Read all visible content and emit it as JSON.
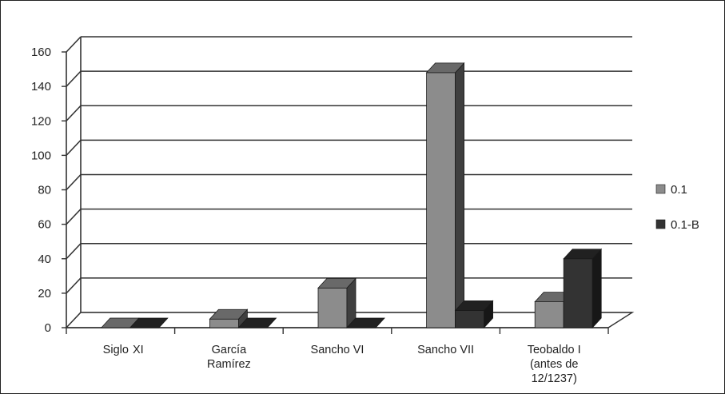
{
  "chart_data": {
    "type": "bar",
    "title": "",
    "xlabel": "",
    "ylabel": "",
    "ylim": [
      0,
      160
    ],
    "yticks": [
      "0",
      "20",
      "40",
      "60",
      "80",
      "100",
      "120",
      "140",
      "160"
    ],
    "categories": [
      [
        "Siglo",
        "XI"
      ],
      [
        "García",
        "Ramírez"
      ],
      [
        "Sancho VI"
      ],
      [
        "Sancho VII"
      ],
      [
        "Teobaldo I",
        "(antes de",
        "12/1237)"
      ]
    ],
    "series": [
      {
        "name": "0.1",
        "values": [
          0,
          5,
          23,
          148,
          15
        ],
        "color": "#8c8c8c"
      },
      {
        "name": "0.1-B",
        "values": [
          0,
          0,
          0,
          10,
          40
        ],
        "color": "#333333"
      }
    ],
    "grid": true,
    "legend": "right",
    "style": "3d-column"
  }
}
